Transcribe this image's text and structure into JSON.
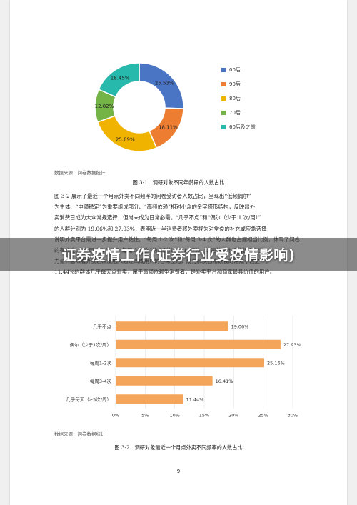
{
  "pie": {
    "chart_data": {
      "type": "pie",
      "categories": [
        "00后",
        "90后",
        "80后",
        "70后",
        "60后及之前"
      ],
      "values": [
        25.53,
        18.11,
        25.89,
        12.02,
        18.45
      ],
      "labels": [
        "25.53%",
        "18.11%",
        "25.89%",
        "12.02%",
        "18.45%"
      ],
      "colors": [
        "#4a74c4",
        "#ec7d31",
        "#f0b400",
        "#74b346",
        "#27b9ab"
      ]
    },
    "source": "数据来源：问卷数据统计",
    "caption": "图 3-1　调研对象不同年龄段的人数占比"
  },
  "paragraph": {
    "lines": [
      "图 3-2 展示了最近一个月点外卖不同频率的问卷受访者人数占比，呈现出“低频偶尔”",
      "为主体、“中频稳定”为重要组成部分、“高频依赖”相对小众的金字塔形结构，反映出外",
      "卖消费已成为大众常规选择，但尚未成为日常必需。“几乎不点”和“偶尔（少于 1 次/周）”",
      "的人群分别为 19.06%和 27.93%，表明近一半消费者将外卖视为对堂食的补充或应急选择，",
      "说明外卖平台需进一步提升用户粘性。“每周 1-2 次”和“每周 3-4 次”的人群也占据相当比例，体现了问卷",
      "的有效性。“每周 1-2 次”和“每周 3-4 次”的人群共占 41.57%，这是外卖市场的核心中坚",
      "力量，意味着外卖已深度融入超过四成用户的日常生活，成为解决日常饮食的常规手段之一。",
      "11.44%的群体几乎每天点外卖，属于高频依赖型消费者，是外卖平台和商家最具价值的用户。"
    ]
  },
  "overlay": {
    "title": "证券疫情工作(证券行业受疫情影响)"
  },
  "bar": {
    "chart_data": {
      "type": "bar",
      "orientation": "horizontal",
      "categories": [
        "几乎不点",
        "偶尔（少于1次/周）",
        "每周1-2次",
        "每周3-4次",
        "几乎每天（≥5次/周）"
      ],
      "values": [
        19.06,
        27.93,
        25.16,
        16.41,
        11.44
      ],
      "labels": [
        "19.06%",
        "27.93%",
        "25.16%",
        "16.41%",
        "11.44%"
      ],
      "xticks": [
        "0%",
        "5%",
        "10%",
        "15%",
        "20%",
        "25%",
        "30%"
      ],
      "xlim": [
        0,
        30
      ],
      "bar_color": "#f5a55a"
    },
    "source": "数据来源：问卷数据统计",
    "caption": "图 3-2　调研对象最近一个月点外卖不同频率的人数占比"
  },
  "page_number": "9"
}
